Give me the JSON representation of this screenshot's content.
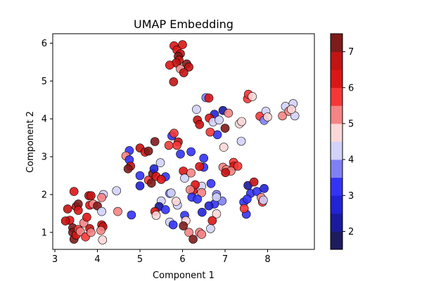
{
  "chart_data": {
    "type": "scatter",
    "title": "UMAP Embedding",
    "xlabel": "Component 1",
    "ylabel": "Component 2",
    "xlim": [
      2.95,
      9.1
    ],
    "ylim": [
      0.55,
      6.25
    ],
    "xticks": [
      3,
      4,
      5,
      6,
      7,
      8
    ],
    "yticks": [
      1,
      2,
      3,
      4,
      5,
      6
    ],
    "grid": false,
    "colorbar": {
      "min": 1.5,
      "max": 7.5,
      "ticks": [
        2,
        3,
        4,
        5,
        6,
        7
      ],
      "boundaries": [
        1.5,
        2,
        2.5,
        3,
        3.5,
        4,
        4.5,
        5,
        5.5,
        6,
        6.5,
        7,
        7.5
      ],
      "colors": [
        "#1c1c5e",
        "#1a1a9e",
        "#2222d6",
        "#3333f5",
        "#8080f5",
        "#d2d2fa",
        "#fcd7d7",
        "#f58484",
        "#f53737",
        "#dc1515",
        "#c31313",
        "#7e1b1b"
      ]
    },
    "points": [
      {
        "x": 5.8,
        "y": 5.93,
        "c": 6.3
      },
      {
        "x": 5.87,
        "y": 5.82,
        "c": 6.4
      },
      {
        "x": 5.95,
        "y": 5.72,
        "c": 6.6
      },
      {
        "x": 6.0,
        "y": 5.96,
        "c": 6.2
      },
      {
        "x": 5.9,
        "y": 5.65,
        "c": 7.1
      },
      {
        "x": 6.1,
        "y": 5.45,
        "c": 7.2
      },
      {
        "x": 6.15,
        "y": 5.37,
        "c": 6.7
      },
      {
        "x": 5.92,
        "y": 5.55,
        "c": 6.5
      },
      {
        "x": 5.85,
        "y": 5.48,
        "c": 6.8
      },
      {
        "x": 5.7,
        "y": 5.42,
        "c": 6.3
      },
      {
        "x": 5.95,
        "y": 5.32,
        "c": 5.2
      },
      {
        "x": 6.03,
        "y": 5.22,
        "c": 6.6
      },
      {
        "x": 5.79,
        "y": 4.98,
        "c": 6.9
      },
      {
        "x": 6.55,
        "y": 4.56,
        "c": 3.8
      },
      {
        "x": 6.62,
        "y": 4.55,
        "c": 6.0
      },
      {
        "x": 6.33,
        "y": 4.25,
        "c": 4.3
      },
      {
        "x": 6.95,
        "y": 4.22,
        "c": 2.0
      },
      {
        "x": 6.75,
        "y": 4.12,
        "c": 2.5
      },
      {
        "x": 6.63,
        "y": 4.02,
        "c": 6.2
      },
      {
        "x": 6.35,
        "y": 3.97,
        "c": 6.6
      },
      {
        "x": 6.4,
        "y": 3.85,
        "c": 6.5
      },
      {
        "x": 6.72,
        "y": 3.92,
        "c": 4.3
      },
      {
        "x": 6.86,
        "y": 3.97,
        "c": 4.2
      },
      {
        "x": 6.82,
        "y": 3.58,
        "c": 3.2
      },
      {
        "x": 6.65,
        "y": 3.65,
        "c": 5.9
      },
      {
        "x": 7.0,
        "y": 3.75,
        "c": 7.0
      },
      {
        "x": 6.97,
        "y": 3.25,
        "c": 4.7
      },
      {
        "x": 7.08,
        "y": 4.15,
        "c": 5.3
      },
      {
        "x": 7.34,
        "y": 3.87,
        "c": 4.5
      },
      {
        "x": 7.39,
        "y": 3.93,
        "c": 4.6
      },
      {
        "x": 7.38,
        "y": 3.41,
        "c": 4.2
      },
      {
        "x": 7.53,
        "y": 4.53,
        "c": 5.5
      },
      {
        "x": 7.55,
        "y": 4.65,
        "c": 5.7
      },
      {
        "x": 7.64,
        "y": 4.59,
        "c": 4.7
      },
      {
        "x": 7.82,
        "y": 4.07,
        "c": 5.8
      },
      {
        "x": 7.92,
        "y": 3.96,
        "c": 3.5
      },
      {
        "x": 7.96,
        "y": 4.2,
        "c": 4.3
      },
      {
        "x": 8.0,
        "y": 4.05,
        "c": 4.6
      },
      {
        "x": 8.35,
        "y": 4.08,
        "c": 5.3
      },
      {
        "x": 8.42,
        "y": 4.33,
        "c": 4.3
      },
      {
        "x": 8.5,
        "y": 4.2,
        "c": 5.2
      },
      {
        "x": 8.6,
        "y": 4.4,
        "c": 4.1
      },
      {
        "x": 8.64,
        "y": 4.08,
        "c": 4.3
      },
      {
        "x": 8.56,
        "y": 4.25,
        "c": 4.9
      },
      {
        "x": 5.75,
        "y": 3.55,
        "c": 3.2
      },
      {
        "x": 5.8,
        "y": 3.62,
        "c": 5.6
      },
      {
        "x": 5.9,
        "y": 3.39,
        "c": 6.5
      },
      {
        "x": 5.87,
        "y": 3.3,
        "c": 5.9
      },
      {
        "x": 5.68,
        "y": 3.3,
        "c": 5.7
      },
      {
        "x": 5.95,
        "y": 3.07,
        "c": 3.1
      },
      {
        "x": 6.2,
        "y": 3.13,
        "c": 3.2
      },
      {
        "x": 6.5,
        "y": 2.96,
        "c": 3.0
      },
      {
        "x": 6.5,
        "y": 2.72,
        "c": 3.1
      },
      {
        "x": 6.4,
        "y": 2.74,
        "c": 6.4
      },
      {
        "x": 6.02,
        "y": 2.62,
        "c": 6.3
      },
      {
        "x": 6.05,
        "y": 2.43,
        "c": 4.2
      },
      {
        "x": 6.2,
        "y": 2.57,
        "c": 5.2
      },
      {
        "x": 6.67,
        "y": 2.29,
        "c": 3.2
      },
      {
        "x": 6.95,
        "y": 2.72,
        "c": 5.3
      },
      {
        "x": 7.03,
        "y": 2.66,
        "c": 5.2
      },
      {
        "x": 7.2,
        "y": 2.85,
        "c": 5.8
      },
      {
        "x": 7.21,
        "y": 2.75,
        "c": 6.1
      },
      {
        "x": 7.3,
        "y": 2.75,
        "c": 5.6
      },
      {
        "x": 7.14,
        "y": 2.62,
        "c": 5.4
      },
      {
        "x": 7.01,
        "y": 2.58,
        "c": 6.8
      },
      {
        "x": 7.54,
        "y": 2.24,
        "c": 2.0
      },
      {
        "x": 7.68,
        "y": 2.33,
        "c": 6.7
      },
      {
        "x": 7.6,
        "y": 2.03,
        "c": 3.0
      },
      {
        "x": 7.75,
        "y": 2.08,
        "c": 3.2
      },
      {
        "x": 7.92,
        "y": 2.16,
        "c": 2.8
      },
      {
        "x": 7.85,
        "y": 1.92,
        "c": 5.0
      },
      {
        "x": 7.88,
        "y": 1.8,
        "c": 5.5
      },
      {
        "x": 7.9,
        "y": 1.85,
        "c": 4.2
      },
      {
        "x": 7.44,
        "y": 1.8,
        "c": 3.2
      },
      {
        "x": 7.5,
        "y": 1.48,
        "c": 3.3
      },
      {
        "x": 7.52,
        "y": 1.88,
        "c": 3.1
      },
      {
        "x": 7.45,
        "y": 1.63,
        "c": 5.8
      },
      {
        "x": 6.93,
        "y": 1.83,
        "c": 3.5
      },
      {
        "x": 6.8,
        "y": 2.0,
        "c": 3.8
      },
      {
        "x": 6.75,
        "y": 1.75,
        "c": 3.0
      },
      {
        "x": 6.8,
        "y": 1.93,
        "c": 4.1
      },
      {
        "x": 6.62,
        "y": 1.7,
        "c": 2.5
      },
      {
        "x": 6.8,
        "y": 1.49,
        "c": 4.5
      },
      {
        "x": 6.46,
        "y": 1.53,
        "c": 2.9
      },
      {
        "x": 6.66,
        "y": 1.1,
        "c": 4.0
      },
      {
        "x": 6.7,
        "y": 1.31,
        "c": 6.4
      },
      {
        "x": 6.45,
        "y": 2.22,
        "c": 4.3
      },
      {
        "x": 6.45,
        "y": 2.05,
        "c": 5.1
      },
      {
        "x": 6.25,
        "y": 2.1,
        "c": 6.0
      },
      {
        "x": 6.3,
        "y": 2.26,
        "c": 6.2
      },
      {
        "x": 6.18,
        "y": 2.13,
        "c": 5.3
      },
      {
        "x": 6.22,
        "y": 1.93,
        "c": 3.0
      },
      {
        "x": 6.35,
        "y": 1.88,
        "c": 3.1
      },
      {
        "x": 5.0,
        "y": 3.23,
        "c": 6.8
      },
      {
        "x": 5.12,
        "y": 3.12,
        "c": 6.0
      },
      {
        "x": 5.2,
        "y": 3.15,
        "c": 7.0
      },
      {
        "x": 5.35,
        "y": 3.4,
        "c": 7.0
      },
      {
        "x": 4.75,
        "y": 3.16,
        "c": 3.3
      },
      {
        "x": 4.67,
        "y": 3.02,
        "c": 5.3
      },
      {
        "x": 4.75,
        "y": 2.92,
        "c": 3.2
      },
      {
        "x": 4.78,
        "y": 2.75,
        "c": 6.7
      },
      {
        "x": 4.72,
        "y": 2.68,
        "c": 7.0
      },
      {
        "x": 5.0,
        "y": 2.5,
        "c": 3.0
      },
      {
        "x": 5.0,
        "y": 2.23,
        "c": 2.8
      },
      {
        "x": 5.2,
        "y": 2.38,
        "c": 5.8
      },
      {
        "x": 5.27,
        "y": 2.3,
        "c": 7.0
      },
      {
        "x": 5.3,
        "y": 2.55,
        "c": 7.0
      },
      {
        "x": 5.33,
        "y": 2.68,
        "c": 2.8
      },
      {
        "x": 5.38,
        "y": 2.48,
        "c": 6.4
      },
      {
        "x": 5.48,
        "y": 2.84,
        "c": 4.2
      },
      {
        "x": 5.6,
        "y": 2.47,
        "c": 3.0
      },
      {
        "x": 5.5,
        "y": 2.4,
        "c": 6.3
      },
      {
        "x": 5.7,
        "y": 2.03,
        "c": 3.7
      },
      {
        "x": 5.73,
        "y": 2.04,
        "c": 4.0
      },
      {
        "x": 5.5,
        "y": 1.83,
        "c": 4.3
      },
      {
        "x": 5.45,
        "y": 1.68,
        "c": 2.3
      },
      {
        "x": 5.35,
        "y": 1.55,
        "c": 6.0
      },
      {
        "x": 5.38,
        "y": 1.45,
        "c": 4.6
      },
      {
        "x": 5.6,
        "y": 1.6,
        "c": 3.2
      },
      {
        "x": 5.7,
        "y": 1.27,
        "c": 4.2
      },
      {
        "x": 5.78,
        "y": 1.2,
        "c": 3.0
      },
      {
        "x": 5.88,
        "y": 1.72,
        "c": 4.3
      },
      {
        "x": 5.85,
        "y": 1.82,
        "c": 4.7
      },
      {
        "x": 6.05,
        "y": 1.45,
        "c": 3.0
      },
      {
        "x": 6.08,
        "y": 1.31,
        "c": 4.6
      },
      {
        "x": 6.02,
        "y": 1.17,
        "c": 7.0
      },
      {
        "x": 6.15,
        "y": 1.0,
        "c": 5.0
      },
      {
        "x": 6.25,
        "y": 0.82,
        "c": 7.2
      },
      {
        "x": 6.4,
        "y": 1.0,
        "c": 5.3
      },
      {
        "x": 6.45,
        "y": 0.95,
        "c": 5.1
      },
      {
        "x": 4.45,
        "y": 2.1,
        "c": 4.2
      },
      {
        "x": 4.8,
        "y": 1.46,
        "c": 3.1
      },
      {
        "x": 3.3,
        "y": 1.62,
        "c": 6.7
      },
      {
        "x": 3.35,
        "y": 1.32,
        "c": 6.4
      },
      {
        "x": 3.25,
        "y": 1.3,
        "c": 6.8
      },
      {
        "x": 3.45,
        "y": 2.08,
        "c": 6.4
      },
      {
        "x": 3.5,
        "y": 1.68,
        "c": 6.8
      },
      {
        "x": 3.55,
        "y": 1.75,
        "c": 7.0
      },
      {
        "x": 3.42,
        "y": 1.12,
        "c": 7.2
      },
      {
        "x": 3.42,
        "y": 1.0,
        "c": 7.1
      },
      {
        "x": 3.45,
        "y": 0.82,
        "c": 7.3
      },
      {
        "x": 3.5,
        "y": 0.93,
        "c": 6.2
      },
      {
        "x": 3.55,
        "y": 1.08,
        "c": 5.5
      },
      {
        "x": 3.6,
        "y": 1.02,
        "c": 5.2
      },
      {
        "x": 3.68,
        "y": 1.25,
        "c": 5.0
      },
      {
        "x": 3.72,
        "y": 0.88,
        "c": 5.8
      },
      {
        "x": 3.75,
        "y": 1.4,
        "c": 6.3
      },
      {
        "x": 3.82,
        "y": 1.1,
        "c": 6.5
      },
      {
        "x": 3.85,
        "y": 1.0,
        "c": 5.1
      },
      {
        "x": 3.8,
        "y": 1.97,
        "c": 6.6
      },
      {
        "x": 3.85,
        "y": 1.97,
        "c": 6.7
      },
      {
        "x": 3.82,
        "y": 1.72,
        "c": 6.1
      },
      {
        "x": 3.9,
        "y": 1.75,
        "c": 5.2
      },
      {
        "x": 4.0,
        "y": 1.7,
        "c": 7.0
      },
      {
        "x": 4.1,
        "y": 1.55,
        "c": 4.2
      },
      {
        "x": 4.14,
        "y": 2.0,
        "c": 4.2
      },
      {
        "x": 4.1,
        "y": 1.92,
        "c": 5.3
      },
      {
        "x": 4.1,
        "y": 1.2,
        "c": 6.4
      },
      {
        "x": 4.13,
        "y": 1.15,
        "c": 6.9
      },
      {
        "x": 4.08,
        "y": 1.05,
        "c": 5.0
      },
      {
        "x": 4.12,
        "y": 0.8,
        "c": 4.9
      },
      {
        "x": 4.48,
        "y": 1.55,
        "c": 5.1
      },
      {
        "x": 3.55,
        "y": 1.58,
        "c": 6.0
      }
    ]
  }
}
